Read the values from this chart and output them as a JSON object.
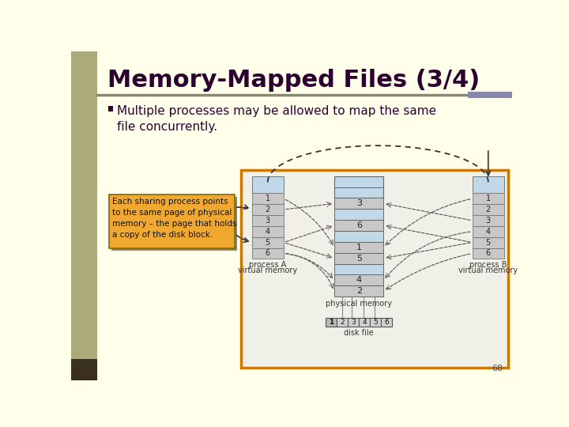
{
  "title": "Memory-Mapped Files (3/4)",
  "bullet": "Multiple processes may be allowed to map the same\nfile concurrently.",
  "callout_text": "Each sharing process points\nto the same page of physical\nmemory – the page that holds\na copy of the disk block.",
  "bg_color": "#FFFFEA",
  "left_bar_color": "#AAAA7A",
  "left_bar_dark": "#3A3020",
  "title_color": "#2D0030",
  "bullet_color": "#2D0030",
  "rule_color": "#888877",
  "diagram_border_color": "#CC7700",
  "light_blue": "#C0D8E8",
  "light_blue2": "#A8C8DC",
  "light_gray": "#C8C8C8",
  "white": "#FFFFFF",
  "callout_bg": "#F0A830",
  "callout_border": "#886600",
  "callout_shadow": "#888866",
  "dashed_color": "#555555",
  "page_num": "68",
  "diag_bg": "#F0EFE8"
}
